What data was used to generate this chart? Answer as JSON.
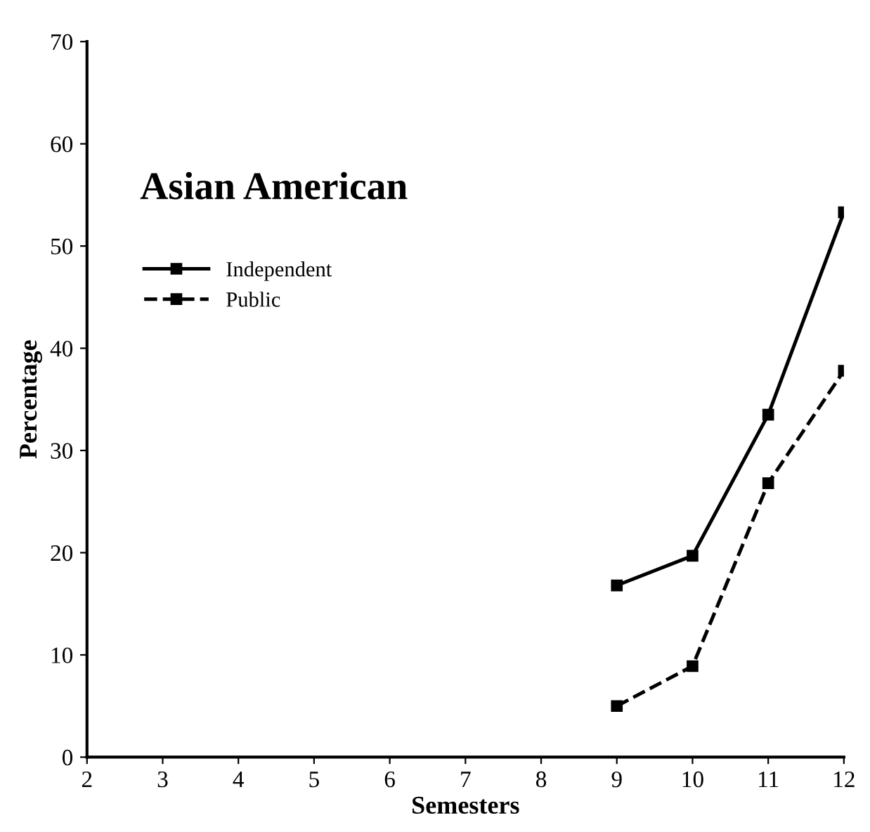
{
  "chart_data": {
    "type": "line",
    "title": "Asian American",
    "xlabel": "Semesters",
    "ylabel": "Percentage",
    "x": [
      9,
      10,
      11,
      12
    ],
    "series": [
      {
        "name": "Independent",
        "color": "#000000",
        "values": [
          16.8,
          19.7,
          33.5,
          53.3
        ],
        "line_style": "solid"
      },
      {
        "name": "Public",
        "color": "#000000",
        "values": [
          5,
          8.9,
          26.8,
          37.8
        ],
        "line_style": "dashed"
      }
    ],
    "xlim": [
      2,
      12
    ],
    "xticks": [
      2,
      3,
      4,
      5,
      6,
      7,
      8,
      9,
      10,
      11,
      12
    ],
    "ylim": [
      0,
      70
    ],
    "yticks": [
      0,
      10,
      20,
      30,
      40,
      50,
      60,
      70
    ],
    "marker": "square",
    "legend": "top left",
    "grid": false
  }
}
